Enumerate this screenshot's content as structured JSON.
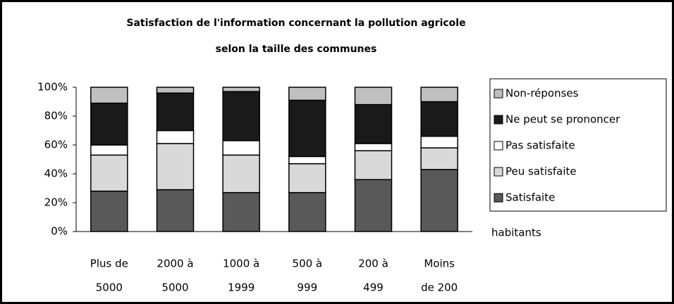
{
  "chart_data": {
    "type": "stacked_bar",
    "title": [
      "Satisfaction de l'information concernant la pollution agricole",
      "selon la taille des communes"
    ],
    "x_label": "habitants",
    "categories": [
      [
        "Plus de",
        "5000"
      ],
      [
        "2000 à",
        "5000"
      ],
      [
        "1000 à",
        "1999"
      ],
      [
        "500 à",
        "999"
      ],
      [
        "200 à",
        "499"
      ],
      [
        "Moins",
        "de 200"
      ]
    ],
    "series": [
      {
        "name": "Satisfaite",
        "color": "#595959",
        "values": [
          28,
          29,
          27,
          27,
          36,
          43
        ]
      },
      {
        "name": "Peu satisfaite",
        "color": "#d9d9d9",
        "values": [
          25,
          32,
          26,
          20,
          20,
          15
        ]
      },
      {
        "name": "Pas satisfaite",
        "color": "#ffffff",
        "values": [
          7,
          9,
          10,
          5,
          5,
          8
        ]
      },
      {
        "name": "Ne peut se prononcer",
        "color": "#1a1a1a",
        "values": [
          29,
          26,
          34,
          39,
          27,
          24
        ]
      },
      {
        "name": "Non-réponses",
        "color": "#c0c0c0",
        "values": [
          11,
          4,
          3,
          9,
          12,
          10
        ]
      }
    ],
    "ylim": [
      0,
      100
    ],
    "yticks": [
      {
        "value": 0,
        "label": "0%"
      },
      {
        "value": 20,
        "label": "20%"
      },
      {
        "value": 40,
        "label": "40%"
      },
      {
        "value": 60,
        "label": "60%"
      },
      {
        "value": 80,
        "label": "80%"
      },
      {
        "value": 100,
        "label": "100%"
      }
    ],
    "legend": "right"
  }
}
